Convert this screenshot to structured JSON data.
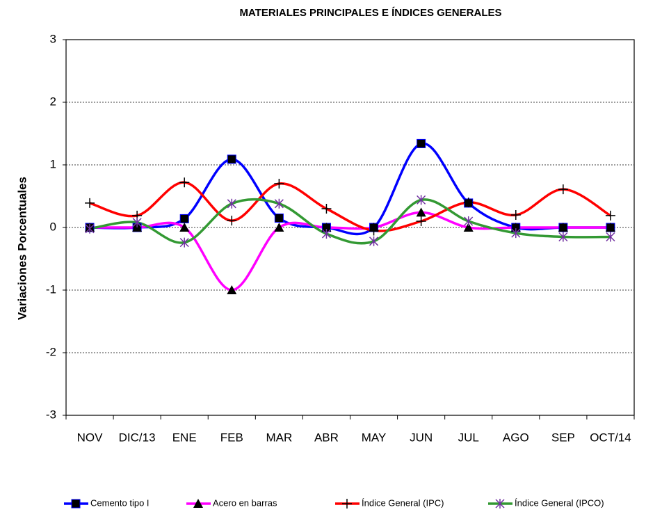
{
  "chart_data": {
    "type": "line",
    "title": "MATERIALES PRINCIPALES E ÍNDICES GENERALES",
    "y_label": "Variaciones Porcentuales",
    "categories": [
      "NOV",
      "DIC/13",
      "ENE",
      "FEB",
      "MAR",
      "ABR",
      "MAY",
      "JUN",
      "JUL",
      "AGO",
      "SEP",
      "OCT/14"
    ],
    "ylim": [
      -3,
      3
    ],
    "yticks": [
      -3,
      -2,
      -1,
      0,
      1,
      2,
      3
    ],
    "grid": true,
    "smooth": true,
    "legend": "bottom",
    "series": [
      {
        "name": "Cemento tipo I",
        "color": "#0000ff",
        "marker": "square",
        "values": [
          0,
          0,
          0.14,
          1.09,
          0.15,
          0,
          0,
          1.34,
          0.39,
          0,
          0,
          0
        ]
      },
      {
        "name": "Acero en barras",
        "color": "#ff00ff",
        "marker": "triangle",
        "values": [
          0,
          0,
          0,
          -1,
          0,
          0,
          0,
          0.24,
          0,
          0,
          0,
          0
        ]
      },
      {
        "name": "Índice General (IPC)",
        "color": "#ff0000",
        "marker": "plus",
        "values": [
          0.39,
          0.19,
          0.72,
          0.11,
          0.7,
          0.3,
          -0.05,
          0.1,
          0.4,
          0.2,
          0.61,
          0.19
        ]
      },
      {
        "name": "Índice General (IPCO)",
        "color": "#339933",
        "marker": "asterisk",
        "values": [
          -0.02,
          0.08,
          -0.24,
          0.38,
          0.38,
          -0.1,
          -0.22,
          0.44,
          0.1,
          -0.09,
          -0.15,
          -0.15
        ]
      }
    ]
  }
}
